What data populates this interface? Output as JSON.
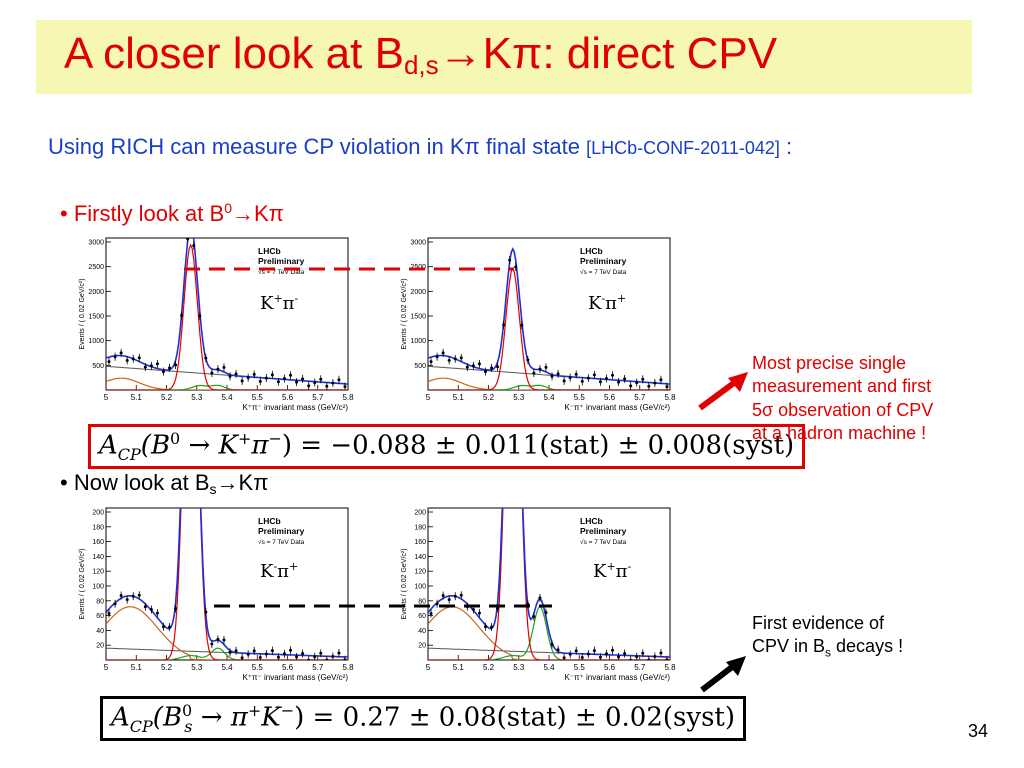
{
  "title": {
    "text": "A closer look at B",
    "sub": "d,s",
    "rest": "→Kπ: direct CPV"
  },
  "subtitle": {
    "text": "Using RICH can measure CP violation in Kπ final state ",
    "ref": "[LHCb-CONF-2011-042]",
    "colon": " :"
  },
  "bullets": [
    {
      "pre": "• Firstly look at B",
      "sup": "0",
      "post": "→Kπ"
    },
    {
      "pre": "• Now look at B",
      "sub": "s",
      "post": "→Kπ"
    }
  ],
  "plot_labels": {
    "lhcb": "LHCb",
    "preliminary": "Preliminary",
    "data": "√s = 7 TeV Data",
    "ylabel": "Events / ( 0.02 GeV/c²)",
    "xticks": [
      "5",
      "5.1",
      "5.2",
      "5.3",
      "5.4",
      "5.5",
      "5.6",
      "5.7",
      "5.8"
    ],
    "yticks_top": [
      "500",
      "1000",
      "1500",
      "2000",
      "2500",
      "3000"
    ],
    "yticks_bottom": [
      "20",
      "40",
      "60",
      "80",
      "100",
      "120",
      "140",
      "160",
      "180",
      "200"
    ]
  },
  "plots": [
    {
      "xlabel": "K⁺π⁻ invariant mass (GeV/c²)",
      "charge": {
        "k": "K",
        "ks": "+",
        "pi": "π",
        "pis": "-"
      }
    },
    {
      "xlabel": "K⁻π⁺ invariant mass (GeV/c²)",
      "charge": {
        "k": "K",
        "ks": "-",
        "pi": "π",
        "pis": "+"
      }
    },
    {
      "xlabel": "K⁺π⁻ invariant mass (GeV/c²)",
      "charge": {
        "k": "K",
        "ks": "-",
        "pi": "π",
        "pis": "+"
      }
    },
    {
      "xlabel": "K⁻π⁺ invariant mass (GeV/c²)",
      "charge": {
        "k": "K",
        "ks": "+",
        "pi": "π",
        "pis": "-"
      }
    }
  ],
  "formulas": {
    "bd": {
      "lhs": "A",
      "lhs_sub": "CP",
      "arg": "(B",
      "arg_sup": "0",
      "decay": " → K",
      "k_sup": "+",
      "pi": "π",
      "pi_sup": "−",
      "rhs": ") = −0.088 ± 0.011(stat) ± 0.008(syst)"
    },
    "bs": {
      "lhs": "A",
      "lhs_sub": "CP",
      "arg": "(B",
      "arg_sub": "s",
      "arg_sup": "0",
      "decay": " → π",
      "pi_sup": "+",
      "k": "K",
      "k_sup": "−",
      "rhs": ") = 0.27 ± 0.08(stat) ± 0.02(syst)"
    }
  },
  "notes": {
    "red": [
      "Most precise single",
      "measurement and first",
      "5σ observation of CPV",
      "at a hadron machine !"
    ],
    "black": {
      "line1": "First evidence of",
      "line2_pre": "CPV in B",
      "line2_sub": "s",
      "line2_post": " decays !"
    }
  },
  "page_number": "34",
  "colors": {
    "accent_red": "#e00000",
    "title_bg": "#f7f7b4",
    "subtitle_blue": "#1a3ec8",
    "fit_blue": "#1f2fd6"
  }
}
